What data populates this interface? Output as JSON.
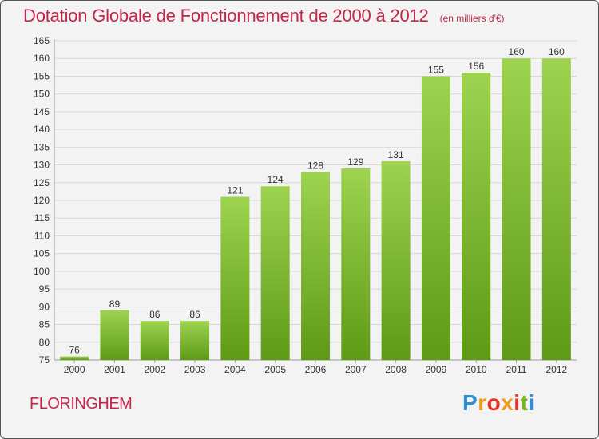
{
  "header": {
    "title": "Dotation Globale de Fonctionnement de 2000 à 2012",
    "subtitle": "(en milliers d'€)"
  },
  "footer": {
    "city": "FLORINGHEM",
    "logo_text": "Proxiti"
  },
  "colors": {
    "accent": "#c2274a",
    "bar_top": "#9dd34f",
    "bar_bottom": "#5e9a16",
    "grid": "#d8d8d8"
  },
  "chart_data": {
    "type": "bar",
    "title": "Dotation Globale de Fonctionnement de 2000 à 2012",
    "subtitle": "(en milliers d'€)",
    "xlabel": "",
    "ylabel": "",
    "ylim": [
      75,
      165
    ],
    "ytick_step": 5,
    "grid": true,
    "categories": [
      "2000",
      "2001",
      "2002",
      "2003",
      "2004",
      "2005",
      "2006",
      "2007",
      "2008",
      "2009",
      "2010",
      "2011",
      "2012"
    ],
    "values": [
      76,
      89,
      86,
      86,
      121,
      124,
      128,
      129,
      131,
      155,
      156,
      160,
      160
    ]
  }
}
